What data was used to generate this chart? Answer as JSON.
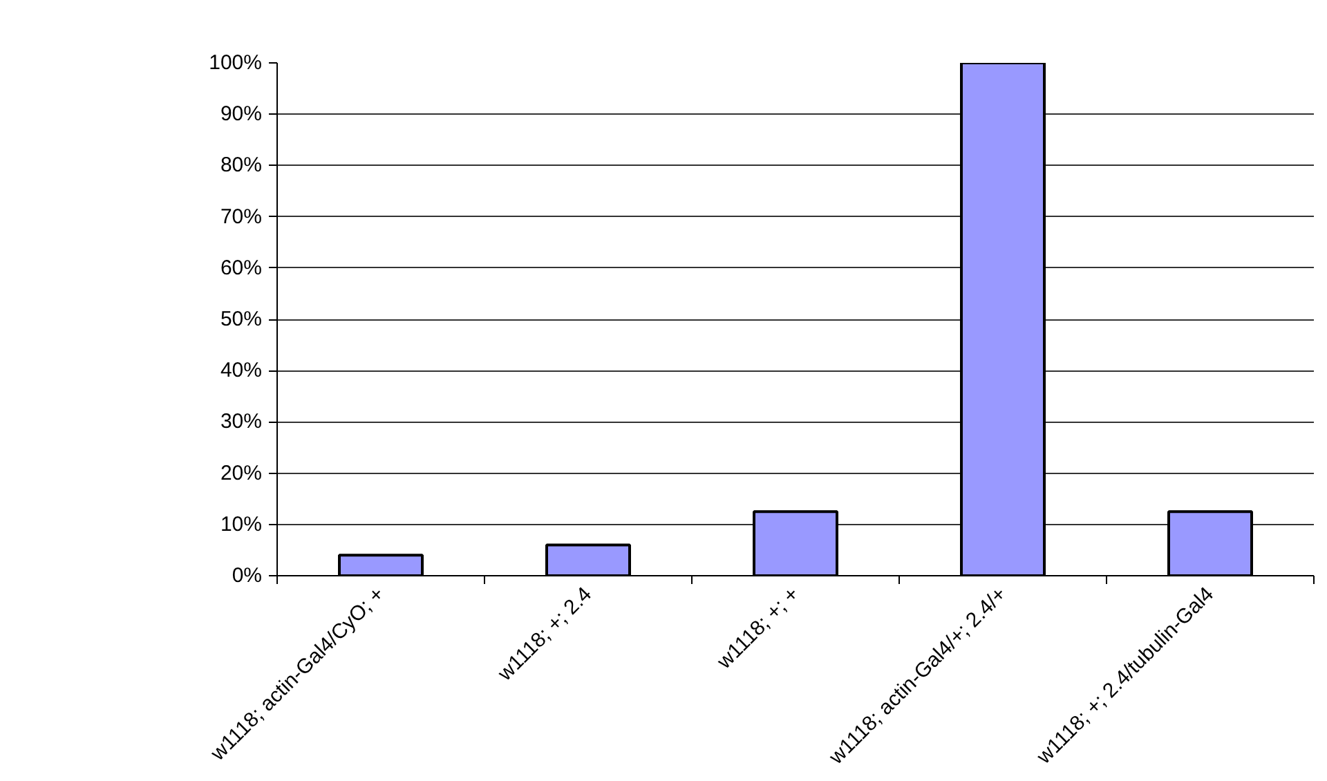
{
  "chart_data": {
    "type": "bar",
    "categories": [
      "w1118; actin-Gal4/CyO; +",
      "w1118; +; 2.4",
      "w1118; +; +",
      "w1118; actin-Gal4/+; 2.4/+",
      "w1118; +; 2.4/tubulin-Gal4"
    ],
    "values": [
      4,
      6,
      12.5,
      100,
      12.5
    ],
    "color": "#9999ff",
    "ylim": [
      0,
      100
    ],
    "yticks": [
      {
        "value": 0,
        "label": "0%"
      },
      {
        "value": 10,
        "label": "10%"
      },
      {
        "value": 20,
        "label": "20%"
      },
      {
        "value": 30,
        "label": "30%"
      },
      {
        "value": 40,
        "label": "40%"
      },
      {
        "value": 50,
        "label": "50%"
      },
      {
        "value": 60,
        "label": "60%"
      },
      {
        "value": 70,
        "label": "70%"
      },
      {
        "value": 80,
        "label": "80%"
      },
      {
        "value": 90,
        "label": "90%"
      },
      {
        "value": 100,
        "label": "100%"
      }
    ],
    "grid": "y"
  }
}
